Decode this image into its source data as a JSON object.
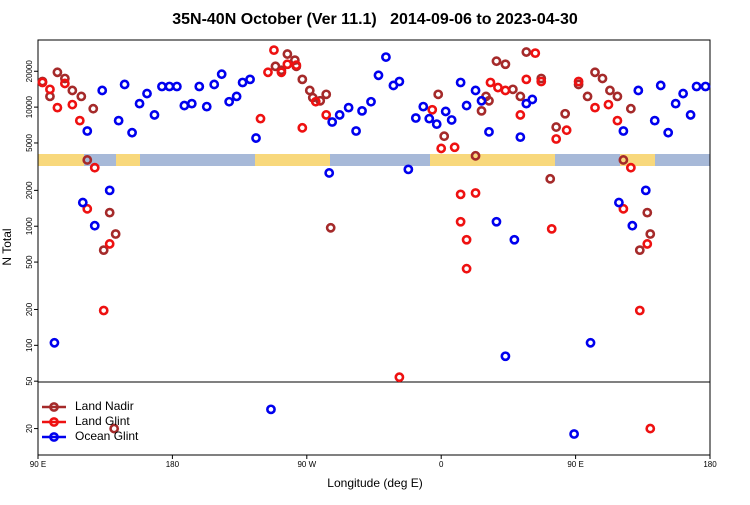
{
  "chart_data": {
    "type": "scatter",
    "title": "35N-40N October (Ver 11.1)   2014-09-06 to 2023-04-30",
    "xlabel": "Longitude (deg E)",
    "ylabel": "N Total",
    "xlim": [
      90,
      540
    ],
    "ylim": [
      12,
      36600
    ],
    "log_y": true,
    "legend": "lower left",
    "xticks": [
      {
        "value": 90,
        "label": "90 E"
      },
      180,
      {
        "value": 270,
        "label": "90 W"
      },
      {
        "value": 360,
        "label": "0"
      },
      {
        "value": 450,
        "label": "90 E"
      },
      {
        "value": 540,
        "label": "180"
      }
    ],
    "yticks": [
      20,
      50,
      100,
      200,
      500,
      1000,
      2000,
      5000,
      10000,
      20000
    ],
    "series": [
      {
        "name": "Land Nadir",
        "color": "#a52a2a",
        "x": [
          93,
          98,
          103,
          108,
          113,
          119,
          123,
          127,
          134,
          138,
          142,
          249,
          253,
          257,
          262,
          263,
          267,
          272,
          274,
          279,
          283,
          286,
          358,
          362,
          383,
          387,
          390,
          392,
          397,
          403,
          408,
          413,
          417,
          427,
          433,
          437,
          443,
          452,
          458,
          463,
          468,
          473,
          478,
          482,
          487,
          493,
          498,
          500,
          141
        ],
        "values": [
          16400,
          12300,
          19600,
          17400,
          13800,
          12300,
          3600,
          9700,
          630,
          1300,
          860,
          22000,
          20400,
          27900,
          24800,
          22000,
          17100,
          13800,
          12000,
          11300,
          12800,
          970,
          12800,
          5700,
          3900,
          9300,
          12300,
          11300,
          24300,
          22900,
          14100,
          12300,
          29000,
          17400,
          2500,
          6800,
          8800,
          15500,
          12300,
          19600,
          17400,
          13800,
          12300,
          3600,
          9700,
          630,
          1300,
          860,
          20
        ]
      },
      {
        "name": "Land Glint",
        "color": "#ee1111",
        "x": [
          93,
          98,
          103,
          108,
          113,
          118,
          123,
          128,
          134,
          138,
          239,
          244,
          248,
          253,
          257,
          263,
          267,
          276,
          283,
          332,
          354,
          360,
          369,
          373,
          373,
          377,
          377,
          383,
          393,
          398,
          403,
          413,
          417,
          423,
          427,
          434,
          437,
          444,
          452,
          463,
          472,
          478,
          482,
          487,
          493,
          498,
          500
        ],
        "values": [
          16100,
          14100,
          9900,
          15800,
          10500,
          7700,
          1400,
          3100,
          196,
          710,
          8000,
          19600,
          30100,
          19600,
          22900,
          22500,
          6700,
          11100,
          8600,
          54,
          9500,
          4500,
          4600,
          1850,
          1090,
          440,
          770,
          1900,
          16100,
          14600,
          13800,
          8600,
          17100,
          28400,
          16400,
          950,
          5400,
          6400,
          16400,
          9900,
          10500,
          7700,
          1400,
          3100,
          196,
          710,
          20
        ]
      },
      {
        "name": "Ocean Glint",
        "color": "#0000ee",
        "x": [
          101,
          120,
          123,
          128,
          133,
          138,
          144,
          148,
          153,
          158,
          163,
          168,
          173,
          178,
          183,
          188,
          193,
          198,
          203,
          208,
          213,
          218,
          223,
          227,
          232,
          236,
          246,
          285,
          287,
          292,
          298,
          303,
          307,
          313,
          318,
          323,
          328,
          332,
          338,
          343,
          348,
          352,
          357,
          363,
          367,
          373,
          377,
          383,
          387,
          392,
          397,
          403,
          409,
          413,
          417,
          421,
          449,
          460,
          479,
          482,
          488,
          492,
          497,
          503,
          507,
          512,
          517,
          522,
          527,
          531,
          537
        ],
        "values": [
          105,
          1580,
          6300,
          1010,
          13800,
          2000,
          7700,
          15500,
          6100,
          10700,
          13000,
          8600,
          14900,
          14900,
          14900,
          10300,
          10700,
          14900,
          10100,
          15500,
          18900,
          11100,
          12300,
          16100,
          17100,
          5500,
          29,
          2800,
          7500,
          8600,
          9900,
          6300,
          9300,
          11100,
          18500,
          26300,
          15200,
          16400,
          3000,
          8100,
          10100,
          8000,
          7200,
          9200,
          7800,
          16100,
          10300,
          13800,
          11300,
          6200,
          1090,
          81,
          770,
          5600,
          10700,
          11600,
          18,
          105,
          1580,
          6300,
          1010,
          13800,
          2000,
          7700,
          15200,
          6100,
          10700,
          13000,
          8600,
          14900,
          14900
        ]
      }
    ]
  }
}
